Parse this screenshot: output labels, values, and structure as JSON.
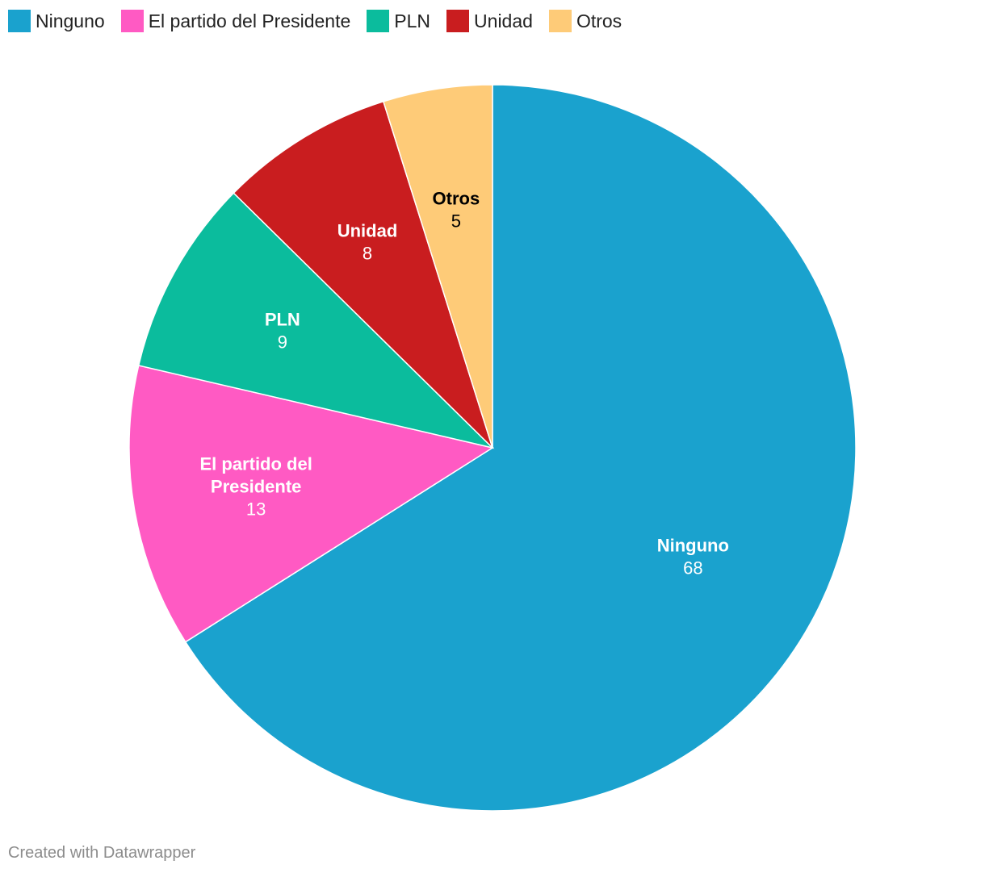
{
  "chart_data": {
    "type": "pie",
    "title": "",
    "categories": [
      "Ninguno",
      "El partido del Presidente",
      "PLN",
      "Unidad",
      "Otros"
    ],
    "values": [
      68,
      13,
      9,
      8,
      5
    ],
    "colors": [
      "#1aa2ce",
      "#ff5ac3",
      "#0bbc9d",
      "#c91d1f",
      "#fecb78"
    ],
    "slice_labels": [
      [
        "Ninguno"
      ],
      [
        "El partido del",
        "Presidente"
      ],
      [
        "PLN"
      ],
      [
        "Unidad"
      ],
      [
        "Otros"
      ]
    ],
    "label_colors": [
      "#ffffff",
      "#ffffff",
      "#ffffff",
      "#ffffff",
      "#000000"
    ],
    "legend_position": "top-left",
    "start_angle_deg": 0,
    "direction": "clockwise"
  },
  "footer": {
    "credit": "Created with Datawrapper"
  }
}
